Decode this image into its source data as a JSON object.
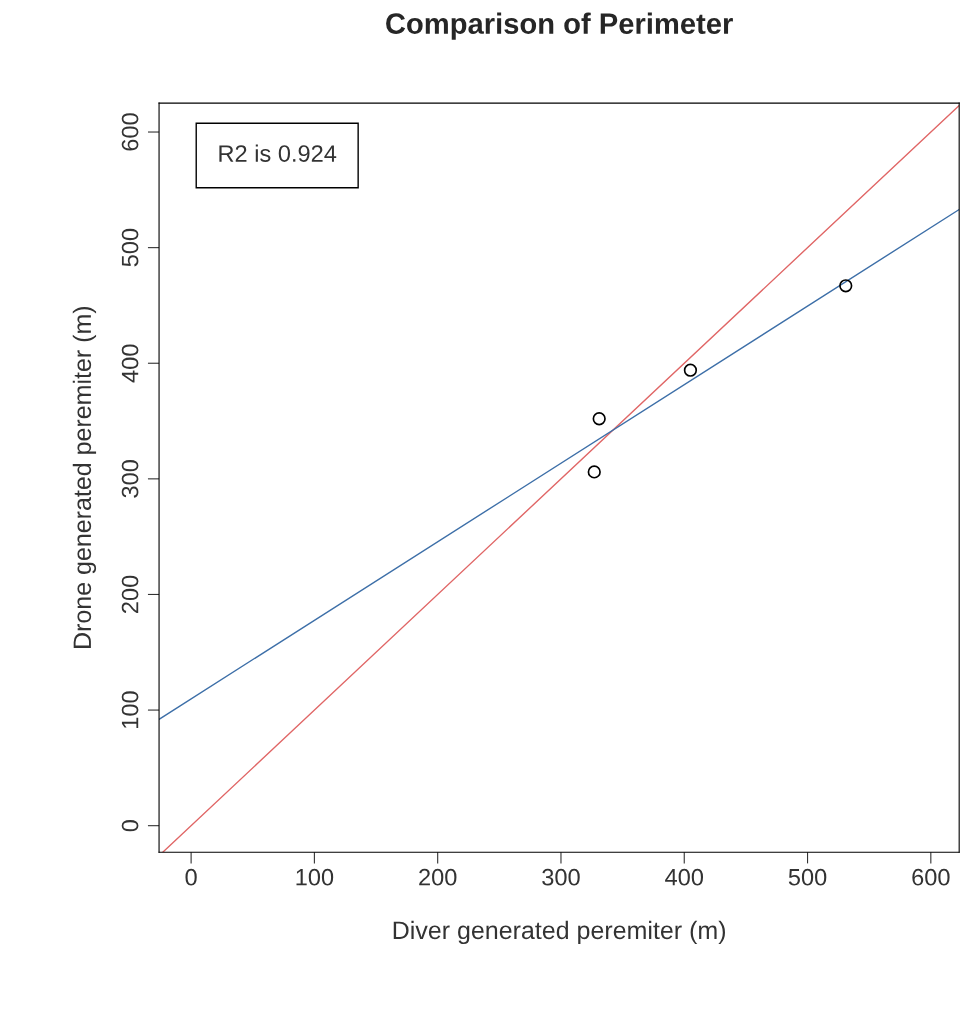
{
  "chart_data": {
    "type": "scatter",
    "title": "Comparison of Perimeter",
    "xlabel": "Diver generated peremiter (m)",
    "ylabel": "Drone generated peremiter (m)",
    "annotations": [
      "R2 is 0.924"
    ],
    "xlim": [
      -26,
      623
    ],
    "ylim": [
      -23,
      625
    ],
    "xticks": [
      0,
      100,
      200,
      300,
      400,
      500,
      600
    ],
    "yticks": [
      0,
      100,
      200,
      300,
      400,
      500,
      600
    ],
    "grid": false,
    "marker": "circle",
    "series": [
      {
        "color": "#000000",
        "x": [
          531,
          405,
          331,
          327
        ],
        "values": [
          467,
          394,
          352,
          306
        ]
      },
      {
        "type": "line",
        "color": "#e06666",
        "x": [
          -23,
          623
        ],
        "values": [
          -23,
          623
        ],
        "marker": "none"
      },
      {
        "type": "line",
        "color": "#3d6fa8",
        "x": [
          -26,
          623
        ],
        "values": [
          92,
          533
        ],
        "marker": "none"
      }
    ]
  }
}
